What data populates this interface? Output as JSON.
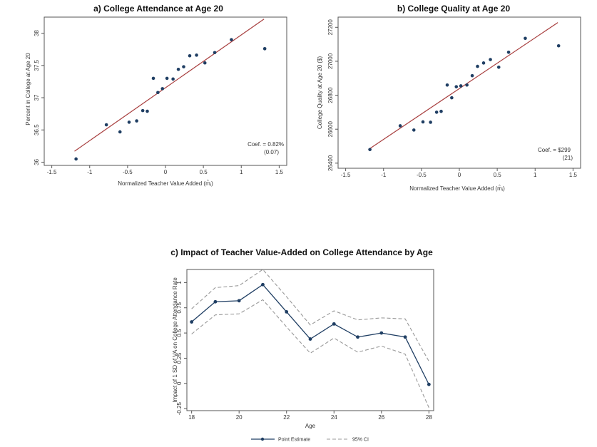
{
  "chart_data": [
    {
      "type": "scatter",
      "title": "a) College Attendance at Age 20",
      "xlabel": "Normalized Teacher Value Added (m̂ⱼ)",
      "ylabel": "Percent in College at Age 20",
      "xlim": [
        -1.6,
        1.6
      ],
      "ylim": [
        35.95,
        38.25
      ],
      "xticks": [
        "-1.5",
        "-1",
        "-0.5",
        "0",
        "0.5",
        "1",
        "1.5"
      ],
      "yticks": [
        "36",
        "36.5",
        "37",
        "37.5",
        "38"
      ],
      "x": [
        -1.18,
        -0.78,
        -0.6,
        -0.48,
        -0.38,
        -0.3,
        -0.24,
        -0.16,
        -0.1,
        -0.04,
        0.02,
        0.1,
        0.17,
        0.24,
        0.32,
        0.41,
        0.52,
        0.65,
        0.87,
        1.31
      ],
      "y": [
        36.05,
        36.58,
        36.47,
        36.62,
        36.64,
        36.8,
        36.79,
        37.3,
        37.08,
        37.14,
        37.3,
        37.29,
        37.44,
        37.48,
        37.65,
        37.66,
        37.54,
        37.7,
        37.9,
        37.76
      ],
      "fit_line": {
        "x": [
          -1.2,
          1.3
        ],
        "y": [
          36.17,
          38.22
        ]
      },
      "coef_label": "Coef. = 0.82%",
      "se_label": "(0.07)",
      "colors": {
        "points": "#1f3e63",
        "fit": "#a83f3f"
      }
    },
    {
      "type": "scatter",
      "title": "b) College Quality at Age 20",
      "xlabel": "Normalized Teacher Value Added (m̂ⱼ)",
      "ylabel": "College Quality at Age 20 ($)",
      "xlim": [
        -1.6,
        1.6
      ],
      "ylim": [
        26370,
        27260
      ],
      "xticks": [
        "-1.5",
        "-1",
        "-0.5",
        "0",
        "0.5",
        "1",
        "1.5"
      ],
      "yticks": [
        "26400",
        "26600",
        "26800",
        "27000",
        "27200"
      ],
      "x": [
        -1.18,
        -0.78,
        -0.6,
        -0.48,
        -0.38,
        -0.3,
        -0.24,
        -0.16,
        -0.1,
        -0.04,
        0.02,
        0.1,
        0.17,
        0.24,
        0.32,
        0.41,
        0.52,
        0.65,
        0.87,
        1.31
      ],
      "y": [
        26480,
        26620,
        26595,
        26643,
        26641,
        26700,
        26705,
        26860,
        26785,
        26850,
        26855,
        26860,
        26915,
        26970,
        26990,
        27010,
        26965,
        27053,
        27135,
        27091
      ],
      "fit_line": {
        "x": [
          -1.2,
          1.3
        ],
        "y": [
          26480,
          27228
        ]
      },
      "coef_label": "Coef. = $299",
      "se_label": "(21)",
      "colors": {
        "points": "#1f3e63",
        "fit": "#a83f3f"
      }
    },
    {
      "type": "line",
      "title": "c) Impact of Teacher Value-Added on College Attendance by Age",
      "xlabel": "Age",
      "ylabel": "Impact of 1 SD of VA on College Attendance Rate",
      "xlim": [
        17.8,
        28.2
      ],
      "ylim": [
        -0.27,
        1.13
      ],
      "xticks": [
        "18",
        "20",
        "22",
        "24",
        "26",
        "28"
      ],
      "yticks": [
        "-0.25",
        "0",
        "0.25",
        "0.5",
        "0.75",
        "1"
      ],
      "x": [
        18,
        19,
        20,
        21,
        22,
        23,
        24,
        25,
        26,
        27,
        28
      ],
      "series": [
        {
          "name": "Point Estimate",
          "values": [
            0.61,
            0.81,
            0.82,
            0.98,
            0.71,
            0.44,
            0.59,
            0.46,
            0.5,
            0.46,
            -0.01
          ]
        },
        {
          "name": "95% CI",
          "upper": [
            0.74,
            0.95,
            0.97,
            1.13,
            0.86,
            0.58,
            0.72,
            0.63,
            0.65,
            0.64,
            0.22
          ],
          "lower": [
            0.49,
            0.68,
            0.69,
            0.83,
            0.56,
            0.3,
            0.45,
            0.31,
            0.37,
            0.29,
            -0.24
          ]
        }
      ],
      "colors": {
        "estimate": "#1f3e63",
        "ci": "#999999"
      }
    }
  ]
}
